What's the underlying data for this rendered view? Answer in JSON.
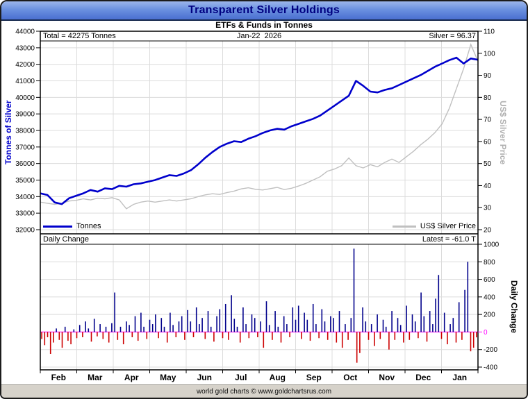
{
  "header": {
    "title": "Transparent Silver Holdings",
    "subtitle": "ETFs & Funds in Tonnes"
  },
  "top_panel": {
    "total_label": "Total = 42275 Tonnes",
    "date_label": "Jan-22  2026",
    "silver_label": "Silver = 96.37"
  },
  "bottom_panel": {
    "title": "Daily Change",
    "latest_label": "Latest = -61.0 T"
  },
  "footer": {
    "credit": "world gold charts © www.goldchartsrus.com"
  },
  "colors": {
    "grid": "#dcdcdc",
    "tonnes_line": "#0000cc",
    "silver_line": "#c0c0c0",
    "positive_bar": "#00008b",
    "negative_bar": "#cc0000",
    "zero_line": "#ff00ff",
    "title_text": "#000080"
  },
  "chart_data": [
    {
      "type": "line",
      "title": "Transparent Silver Holdings — ETFs & Funds in Tonnes",
      "x_note": "62 evenly spaced samples, Feb 2025 through Jan-22 2026",
      "categories": [
        "Feb",
        "Mar",
        "Apr",
        "May",
        "Jun",
        "Jul",
        "Aug",
        "Sep",
        "Oct",
        "Nov",
        "Dec",
        "Jan"
      ],
      "left_axis": {
        "label": "Tonnes of Silver",
        "min": 32000,
        "max": 44000,
        "ticks": [
          44000,
          43000,
          42000,
          41000,
          40000,
          39000,
          38000,
          37000,
          36000,
          35000,
          34000,
          33000,
          32000
        ]
      },
      "right_axis": {
        "label": "US$ Silver Price",
        "min": 20,
        "max": 110,
        "ticks": [
          110,
          100,
          90,
          80,
          70,
          60,
          50,
          40,
          30,
          20
        ]
      },
      "series": [
        {
          "name": "Tonnes",
          "axis": "left",
          "color": "#0000cc",
          "values": [
            34200,
            34100,
            33650,
            33550,
            33900,
            34050,
            34200,
            34400,
            34300,
            34500,
            34450,
            34650,
            34600,
            34750,
            34800,
            34900,
            35000,
            35150,
            35300,
            35250,
            35400,
            35600,
            35950,
            36350,
            36700,
            37000,
            37200,
            37350,
            37300,
            37500,
            37650,
            37850,
            38000,
            38100,
            38050,
            38250,
            38400,
            38550,
            38700,
            38900,
            39200,
            39500,
            39800,
            40100,
            41000,
            40700,
            40350,
            40300,
            40450,
            40550,
            40750,
            40950,
            41150,
            41350,
            41600,
            41850,
            42050,
            42250,
            42400,
            42050,
            42350,
            42275
          ]
        },
        {
          "name": "US$ Silver Price",
          "axis": "right",
          "color": "#c0c0c0",
          "values": [
            32.5,
            32.0,
            31.5,
            32.0,
            33.0,
            33.3,
            34.0,
            33.5,
            34.3,
            34.0,
            34.5,
            33.5,
            29.5,
            31.5,
            32.5,
            33.0,
            32.5,
            33.0,
            33.5,
            33.0,
            33.5,
            34.0,
            35.0,
            35.8,
            36.3,
            36.0,
            36.8,
            37.5,
            38.5,
            39.0,
            38.3,
            38.0,
            38.6,
            39.2,
            38.2,
            38.8,
            39.8,
            41.0,
            42.5,
            44.0,
            46.5,
            47.5,
            49.0,
            52.5,
            49.0,
            48.0,
            49.5,
            48.5,
            50.5,
            52.0,
            50.5,
            53.0,
            55.5,
            58.5,
            61.0,
            64.0,
            68.0,
            75.0,
            84.0,
            93.0,
            104.0,
            96.37
          ]
        }
      ],
      "annotations": {
        "total_tonnes": 42275,
        "date": "Jan-22 2026",
        "silver_price": 96.37
      }
    },
    {
      "type": "bar",
      "title": "Daily Change",
      "latest": -61.0,
      "axis": {
        "label": "Daily Change",
        "min": -430,
        "max": 1118,
        "ticks": [
          1000,
          800,
          600,
          400,
          200,
          0,
          -200,
          -400
        ]
      },
      "values": [
        -80,
        -150,
        -60,
        -250,
        -120,
        40,
        -90,
        -180,
        60,
        -100,
        -140,
        30,
        -70,
        80,
        -60,
        120,
        40,
        -110,
        150,
        -50,
        90,
        -80,
        60,
        -120,
        100,
        450,
        -90,
        60,
        -140,
        120,
        80,
        -60,
        180,
        -100,
        220,
        60,
        -80,
        140,
        90,
        200,
        -70,
        160,
        60,
        -120,
        220,
        80,
        -60,
        120,
        180,
        -90,
        250,
        120,
        -60,
        280,
        90,
        160,
        -80,
        240,
        60,
        -110,
        180,
        260,
        -70,
        320,
        -90,
        420,
        150,
        60,
        -120,
        280,
        90,
        -70,
        200,
        160,
        -60,
        120,
        -180,
        350,
        80,
        -90,
        240,
        60,
        -120,
        180,
        90,
        -60,
        280,
        140,
        300,
        -80,
        220,
        140,
        -100,
        320,
        90,
        -70,
        260,
        120,
        -90,
        180,
        160,
        -120,
        240,
        -180,
        90,
        -90,
        160,
        950,
        -350,
        -240,
        280,
        120,
        -90,
        90,
        -160,
        200,
        -80,
        140,
        60,
        -200,
        240,
        -90,
        160,
        80,
        -120,
        300,
        -90,
        200,
        120,
        -70,
        450,
        180,
        -110,
        240,
        90,
        380,
        650,
        -80,
        220,
        -140,
        90,
        160,
        -120,
        340,
        -90,
        480,
        800,
        -220,
        -180,
        -61
      ]
    }
  ]
}
